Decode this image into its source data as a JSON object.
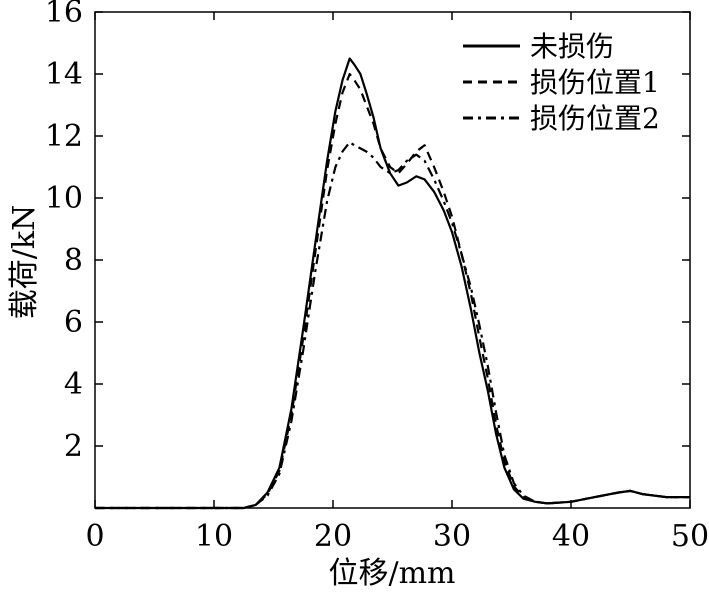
{
  "chart_data": {
    "type": "line",
    "title": "",
    "xlabel": "位移/mm",
    "ylabel": "载荷/kN",
    "xlim": [
      0,
      50
    ],
    "ylim": [
      0,
      16
    ],
    "x_ticks": [
      0,
      10,
      20,
      30,
      40,
      50
    ],
    "y_ticks": [
      2,
      4,
      6,
      8,
      10,
      12,
      14,
      16
    ],
    "x_tick_labels": [
      "0",
      "10",
      "20",
      "30",
      "40",
      "50"
    ],
    "y_tick_labels": [
      "2",
      "4",
      "6",
      "8",
      "10",
      "12",
      "14",
      "16"
    ],
    "grid": false,
    "legend_position": "top-right",
    "series": [
      {
        "name": "未损伤",
        "style": "solid",
        "x": [
          0,
          12.5,
          13.5,
          14.5,
          15.5,
          16.5,
          17.5,
          18.5,
          19.5,
          20.2,
          20.8,
          21.4,
          21.8,
          22.3,
          22.8,
          23.4,
          24.0,
          24.8,
          25.5,
          26.2,
          27.0,
          27.7,
          28.5,
          29.3,
          30.0,
          30.8,
          31.6,
          32.3,
          33.0,
          33.7,
          34.4,
          35.2,
          36.0,
          37.0,
          38.0,
          40.0,
          42.0,
          44.0,
          45.0,
          46.0,
          48.0,
          50.0
        ],
        "y": [
          0,
          0,
          0.1,
          0.5,
          1.3,
          3.2,
          5.8,
          8.5,
          11.2,
          12.8,
          13.8,
          14.5,
          14.3,
          14.0,
          13.4,
          12.6,
          11.6,
          10.8,
          10.4,
          10.5,
          10.7,
          10.6,
          10.2,
          9.6,
          8.9,
          7.8,
          6.4,
          5.0,
          3.8,
          2.4,
          1.3,
          0.6,
          0.3,
          0.2,
          0.15,
          0.2,
          0.35,
          0.5,
          0.55,
          0.45,
          0.35,
          0.35
        ]
      },
      {
        "name": "损伤位置1",
        "style": "dashed",
        "x": [
          0,
          12.5,
          13.5,
          14.5,
          15.5,
          16.5,
          17.5,
          18.5,
          19.5,
          20.2,
          20.8,
          21.4,
          21.8,
          22.3,
          22.8,
          23.4,
          24.0,
          24.8,
          25.5,
          26.2,
          27.0,
          27.7,
          28.5,
          29.3,
          30.0,
          30.8,
          31.6,
          32.3,
          33.0,
          33.7,
          34.4,
          35.2,
          36.0,
          37.0,
          38.0,
          40.0,
          42.0,
          44.0,
          45.0,
          46.0,
          48.0,
          50.0
        ],
        "y": [
          0,
          0,
          0.1,
          0.45,
          1.2,
          3.0,
          5.5,
          8.2,
          10.9,
          12.4,
          13.4,
          14.0,
          13.8,
          13.5,
          13.0,
          12.4,
          11.6,
          11.0,
          10.8,
          11.1,
          11.5,
          11.7,
          11.0,
          10.2,
          9.4,
          8.2,
          6.9,
          5.5,
          4.2,
          2.7,
          1.5,
          0.7,
          0.35,
          0.2,
          0.15,
          0.2,
          0.35,
          0.5,
          0.55,
          0.45,
          0.35,
          0.35
        ]
      },
      {
        "name": "损伤位置2",
        "style": "dashdot",
        "x": [
          0,
          12.5,
          13.5,
          14.5,
          15.5,
          16.5,
          17.5,
          18.5,
          19.5,
          20.2,
          20.8,
          21.4,
          21.8,
          22.3,
          22.8,
          23.4,
          24.0,
          24.8,
          25.5,
          26.2,
          27.0,
          27.7,
          28.5,
          29.3,
          30.0,
          30.8,
          31.6,
          32.3,
          33.0,
          33.7,
          34.4,
          35.2,
          36.0,
          37.0,
          38.0,
          40.0,
          42.0,
          44.0,
          45.0,
          46.0,
          48.0,
          50.0
        ],
        "y": [
          0,
          0,
          0.1,
          0.4,
          1.1,
          2.8,
          5.1,
          7.6,
          9.9,
          11.0,
          11.5,
          11.8,
          11.7,
          11.6,
          11.5,
          11.3,
          11.0,
          10.8,
          10.9,
          11.2,
          11.4,
          11.2,
          10.6,
          9.9,
          9.2,
          8.2,
          7.1,
          5.9,
          4.6,
          3.1,
          1.7,
          0.8,
          0.4,
          0.2,
          0.15,
          0.2,
          0.35,
          0.5,
          0.55,
          0.45,
          0.35,
          0.35
        ]
      }
    ]
  }
}
